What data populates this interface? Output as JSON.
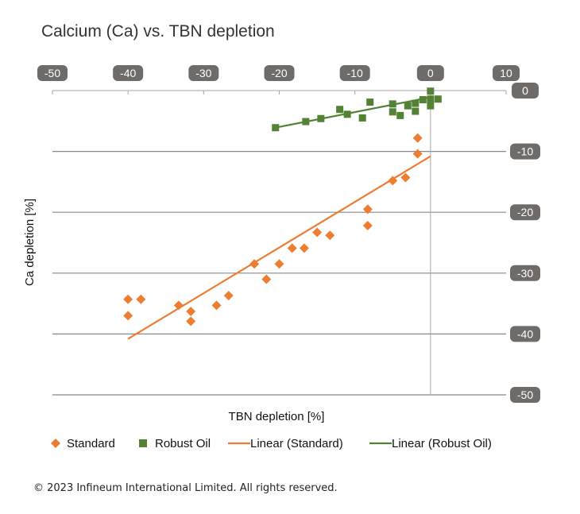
{
  "chart_data": {
    "type": "scatter",
    "title": "Calcium (Ca) vs. TBN depletion",
    "xlabel": "TBN depletion [%]",
    "ylabel": "Ca depletion [%]",
    "xlim": [
      -50,
      10
    ],
    "ylim": [
      -50,
      0
    ],
    "x_ticks": [
      "-50",
      "-40",
      "-30",
      "-20",
      "-10",
      "0",
      "10"
    ],
    "y_ticks": [
      "0",
      "-10",
      "-20",
      "-30",
      "-40",
      "-50"
    ],
    "grid": "horizontal",
    "legend_position": "bottom",
    "series": [
      {
        "name": "Standard",
        "marker": "diamond",
        "color": "#ED7D31",
        "points": [
          [
            -40,
            -34.3
          ],
          [
            -40,
            -37.0
          ],
          [
            -38.3,
            -34.3
          ],
          [
            -33.3,
            -35.3
          ],
          [
            -31.7,
            -36.3
          ],
          [
            -31.7,
            -37.9
          ],
          [
            -28.3,
            -35.3
          ],
          [
            -26.7,
            -33.7
          ],
          [
            -23.3,
            -28.5
          ],
          [
            -21.7,
            -31.0
          ],
          [
            -20,
            -28.5
          ],
          [
            -18.3,
            -25.9
          ],
          [
            -16.7,
            -25.9
          ],
          [
            -15,
            -23.3
          ],
          [
            -13.3,
            -23.8
          ],
          [
            -8.3,
            -19.5
          ],
          [
            -8.3,
            -22.2
          ],
          [
            -5,
            -14.8
          ],
          [
            -3.3,
            -14.3
          ],
          [
            -1.7,
            -10.4
          ],
          [
            -1.7,
            -7.8
          ]
        ]
      },
      {
        "name": "Robust Oil",
        "marker": "square",
        "color": "#548235",
        "points": [
          [
            -20.5,
            -6.1
          ],
          [
            -16.5,
            -5.1
          ],
          [
            -14.5,
            -4.6
          ],
          [
            -12,
            -3.1
          ],
          [
            -11,
            -3.9
          ],
          [
            -9,
            -4.5
          ],
          [
            -8,
            -1.9
          ],
          [
            -5,
            -2.2
          ],
          [
            -5,
            -3.5
          ],
          [
            -4,
            -4.1
          ],
          [
            -3,
            -2.5
          ],
          [
            -2,
            -2.1
          ],
          [
            -2,
            -3.4
          ],
          [
            -1,
            -1.5
          ],
          [
            0,
            -1.4
          ],
          [
            0,
            -2.5
          ],
          [
            0,
            -0.1
          ],
          [
            1,
            -1.4
          ]
        ]
      },
      {
        "name": "Linear (Standard)",
        "type": "line",
        "color": "#ED7D31",
        "x": [
          -40,
          0
        ],
        "y": [
          -40.8,
          -10.8
        ]
      },
      {
        "name": "Linear (Robust Oil)",
        "type": "line",
        "color": "#548235",
        "x": [
          -20.5,
          0
        ],
        "y": [
          -6.1,
          -1.1
        ]
      }
    ]
  },
  "footer": "© 2023 Infineum International Limited. All rights reserved.",
  "colors": {
    "pill_bg": "#6E6B68",
    "grid": "#888888",
    "standard": "#ED7D31",
    "robust": "#548235"
  }
}
